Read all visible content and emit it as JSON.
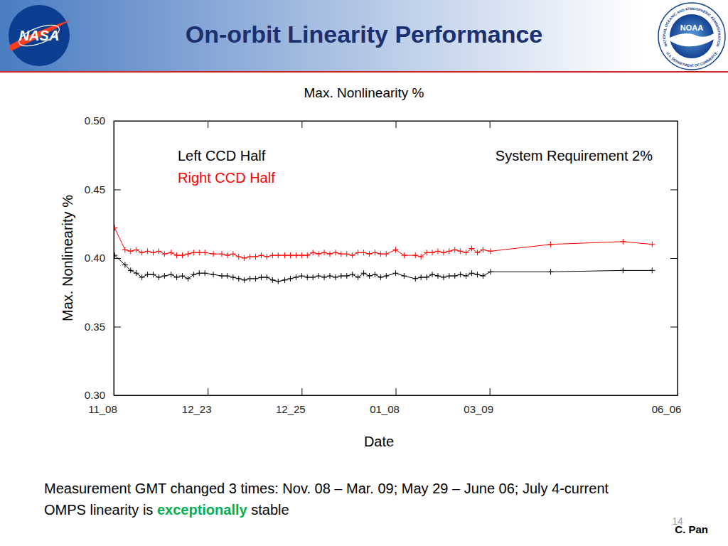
{
  "slide": {
    "title": "On-orbit Linearity Performance",
    "logos": [
      {
        "text": "NASA"
      },
      {
        "text": "NOAA",
        "ring_texts": [
          "NATIONAL OCEANIC AND ATMOSPHERIC ADMINISTRATION",
          "U.S. DEPARTMENT OF COMMERCE"
        ]
      }
    ],
    "notes": [
      {
        "parts": [
          {
            "text": "Measurement GMT changed 3 times: Nov. 08 – Mar. 09; May 29 – June 06; July 4-current"
          }
        ]
      },
      {
        "parts": [
          {
            "text": "OMPS linearity is "
          },
          {
            "text": "exceptionally",
            "emphasis": true
          },
          {
            "text": " stable"
          }
        ]
      }
    ],
    "page_number": "14",
    "author": "C. Pan"
  },
  "chart_data": {
    "type": "line",
    "title": "Max. Nonlinearity %",
    "x_label": "Date",
    "y_label": "Max. Nonlinearity %",
    "annotations": [
      "System Requirement 2%"
    ],
    "x": [
      0.01,
      0.12,
      0.18,
      0.24,
      0.3,
      0.36,
      0.42,
      0.48,
      0.54,
      0.61,
      0.67,
      0.73,
      0.79,
      0.85,
      0.91,
      0.97,
      1.06,
      1.15,
      1.21,
      1.27,
      1.33,
      1.39,
      1.45,
      1.51,
      1.57,
      1.63,
      1.69,
      1.75,
      1.82,
      1.88,
      1.94,
      2.0,
      2.06,
      2.12,
      2.18,
      2.24,
      2.3,
      2.36,
      2.42,
      2.48,
      2.54,
      2.6,
      2.66,
      2.72,
      2.78,
      2.84,
      2.9,
      3.0,
      3.09,
      3.21,
      3.27,
      3.33,
      3.39,
      3.45,
      3.51,
      3.57,
      3.63,
      3.69,
      3.75,
      3.81,
      3.87,
      3.93,
      4.01,
      4.65,
      5.42,
      5.73
    ],
    "series": [
      {
        "name": "Left CCD Half",
        "color": "#000000",
        "marker": "plus",
        "values": [
          0.402,
          0.395,
          0.391,
          0.389,
          0.386,
          0.388,
          0.388,
          0.386,
          0.387,
          0.388,
          0.386,
          0.387,
          0.385,
          0.388,
          0.389,
          0.389,
          0.388,
          0.387,
          0.387,
          0.386,
          0.385,
          0.384,
          0.385,
          0.385,
          0.386,
          0.386,
          0.384,
          0.383,
          0.384,
          0.385,
          0.386,
          0.387,
          0.386,
          0.386,
          0.387,
          0.386,
          0.387,
          0.386,
          0.387,
          0.387,
          0.388,
          0.386,
          0.389,
          0.387,
          0.388,
          0.386,
          0.387,
          0.389,
          0.387,
          0.385,
          0.386,
          0.386,
          0.388,
          0.387,
          0.386,
          0.387,
          0.387,
          0.388,
          0.387,
          0.389,
          0.388,
          0.387,
          0.39,
          0.39,
          0.391,
          0.391
        ]
      },
      {
        "name": "Right CCD Half",
        "color": "#ff0000",
        "marker": "plus",
        "values": [
          0.422,
          0.406,
          0.405,
          0.406,
          0.404,
          0.405,
          0.404,
          0.405,
          0.403,
          0.404,
          0.402,
          0.402,
          0.403,
          0.404,
          0.404,
          0.404,
          0.403,
          0.403,
          0.402,
          0.403,
          0.401,
          0.4,
          0.401,
          0.401,
          0.402,
          0.401,
          0.402,
          0.402,
          0.402,
          0.402,
          0.402,
          0.402,
          0.402,
          0.404,
          0.403,
          0.404,
          0.403,
          0.404,
          0.403,
          0.403,
          0.402,
          0.404,
          0.404,
          0.403,
          0.404,
          0.403,
          0.403,
          0.406,
          0.402,
          0.402,
          0.401,
          0.404,
          0.404,
          0.405,
          0.404,
          0.405,
          0.406,
          0.405,
          0.404,
          0.407,
          0.404,
          0.406,
          0.405,
          0.41,
          0.412,
          0.41
        ]
      }
    ],
    "xlim": [
      0,
      6
    ],
    "xticks": [
      {
        "value": 0,
        "label": "11_08"
      },
      {
        "value": 1,
        "label": "12_23"
      },
      {
        "value": 2,
        "label": "12_25"
      },
      {
        "value": 3,
        "label": "01_08"
      },
      {
        "value": 4,
        "label": "03_09"
      },
      {
        "value": 6,
        "label": "06_06"
      }
    ],
    "ylim": [
      0.3,
      0.5
    ],
    "yticks": [
      {
        "value": 0.3,
        "label": "0.30"
      },
      {
        "value": 0.35,
        "label": "0.35"
      },
      {
        "value": 0.4,
        "label": "0.40"
      },
      {
        "value": 0.45,
        "label": "0.45"
      },
      {
        "value": 0.5,
        "label": "0.50"
      }
    ],
    "grid": false,
    "legend": "upper left"
  }
}
